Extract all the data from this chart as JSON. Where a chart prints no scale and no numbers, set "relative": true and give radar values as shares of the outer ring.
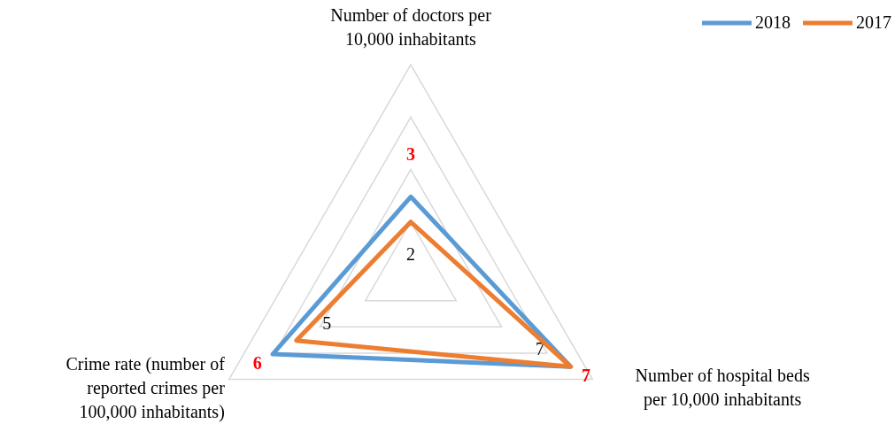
{
  "chart_data": {
    "type": "radar",
    "relative": true,
    "categories": [
      "Number of doctors per 10,000 inhabitants",
      "Number of hospital beds per 10,000 inhabitants",
      "Crime rate (number of reported crimes per 100,000 inhabitants)"
    ],
    "series": [
      {
        "name": "2018",
        "color": "#5b9bd5",
        "values": [
          0.37,
          0.88,
          0.76
        ]
      },
      {
        "name": "2017",
        "color": "#ed7d31",
        "values": [
          0.25,
          0.88,
          0.63
        ]
      }
    ],
    "annotations": [
      {
        "text": "3",
        "x": "Number of doctors per 10,000 inhabitants"
      },
      {
        "text": "7",
        "x": "Number of hospital beds per 10,000 inhabitants"
      },
      {
        "text": "6",
        "x": "Crime rate (number of reported crimes per 100,000 inhabitants)"
      },
      {
        "text": "2",
        "x": "Number of doctors per 10,000 inhabitants"
      },
      {
        "text": "7",
        "x": "Number of hospital beds per 10,000 inhabitants"
      },
      {
        "text": "5",
        "x": "Crime rate (number of reported crimes per 100,000 inhabitants)"
      }
    ],
    "grid": true,
    "legend": "top right",
    "marker": "none"
  }
}
